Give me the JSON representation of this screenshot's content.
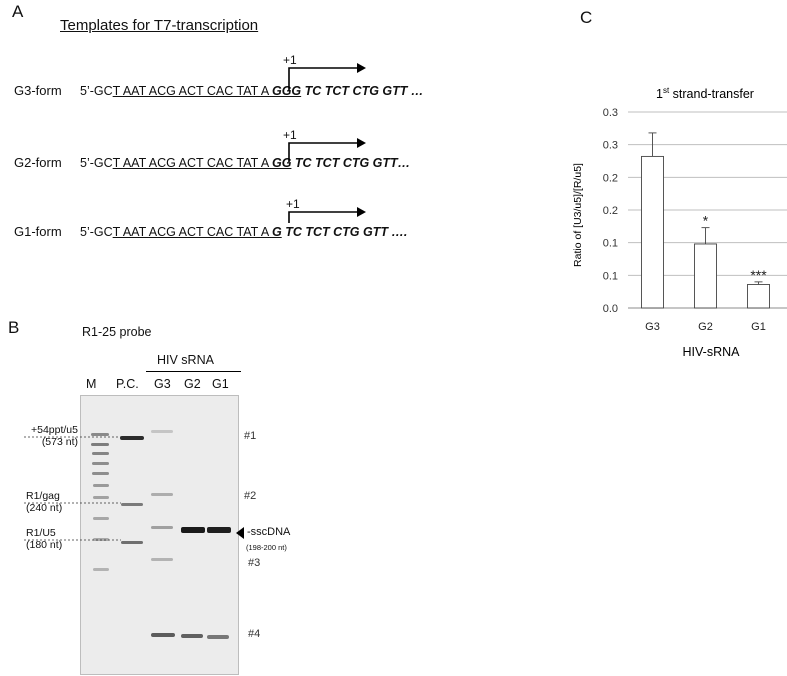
{
  "panelA": {
    "letter": "A",
    "title": "Templates for T7-transcription",
    "plus_label": "+1",
    "rows": [
      {
        "label": "G3-form",
        "prefix": "5’-GC",
        "underlined": "T AAT ACG ACT CAC TAT A ",
        "g_part": "GGG",
        "tail": " TC TCT CTG GTT …"
      },
      {
        "label": "G2-form",
        "prefix": "5’-GC",
        "underlined": "T AAT ACG ACT CAC TAT A ",
        "g_part": "GG",
        "tail": " TC TCT CTG GTT…"
      },
      {
        "label": "G1-form",
        "prefix": "5’-GC",
        "underlined": "T AAT ACG ACT CAC TAT A ",
        "g_part": "G",
        "tail": " TC TCT CTG GTT …."
      }
    ]
  },
  "panelB": {
    "letter": "B",
    "probe": "R1-25 probe",
    "group_label": "HIV sRNA",
    "lanes": [
      "M",
      "P.C.",
      "G3",
      "G2",
      "G1"
    ],
    "markers": [
      {
        "line1": "+54ppt/u5",
        "line2": "(573 nt)"
      },
      {
        "line1": "R1/gag",
        "line2": "(240 nt)"
      },
      {
        "line1": "R1/U5",
        "line2": "(180 nt)"
      }
    ],
    "band_numbers": [
      "#1",
      "#2",
      "#3",
      "#4"
    ],
    "sscdna_label": "-sscDNA",
    "sscdna_size": "(198-200 nt)"
  },
  "panelC": {
    "letter": "C",
    "chart_data": {
      "type": "bar",
      "title": "1st strand-transfer",
      "title_base": "1",
      "title_sup": "st",
      "title_rest": "  strand-transfer",
      "categories": [
        "G3",
        "G2",
        "G1"
      ],
      "values": [
        0.232,
        0.098,
        0.036
      ],
      "errors": [
        0.036,
        0.025,
        0.004
      ],
      "significance": [
        "",
        "*",
        "***"
      ],
      "xlabel": "HIV-sRNA",
      "ylabel": "Ratio of  [U3/u5]/[R/u5]",
      "ylim": [
        0,
        0.3
      ],
      "ytick_values": [
        0,
        0.05,
        0.1,
        0.15,
        0.2,
        0.25,
        0.3
      ],
      "ytick_labels": [
        "0.0",
        "0.1",
        "0.1",
        "0.2",
        "0.2",
        "0.3",
        "0.3"
      ],
      "grid": true,
      "bar_color": "#ffffff",
      "gridline_color": "#bfbfbf"
    }
  }
}
